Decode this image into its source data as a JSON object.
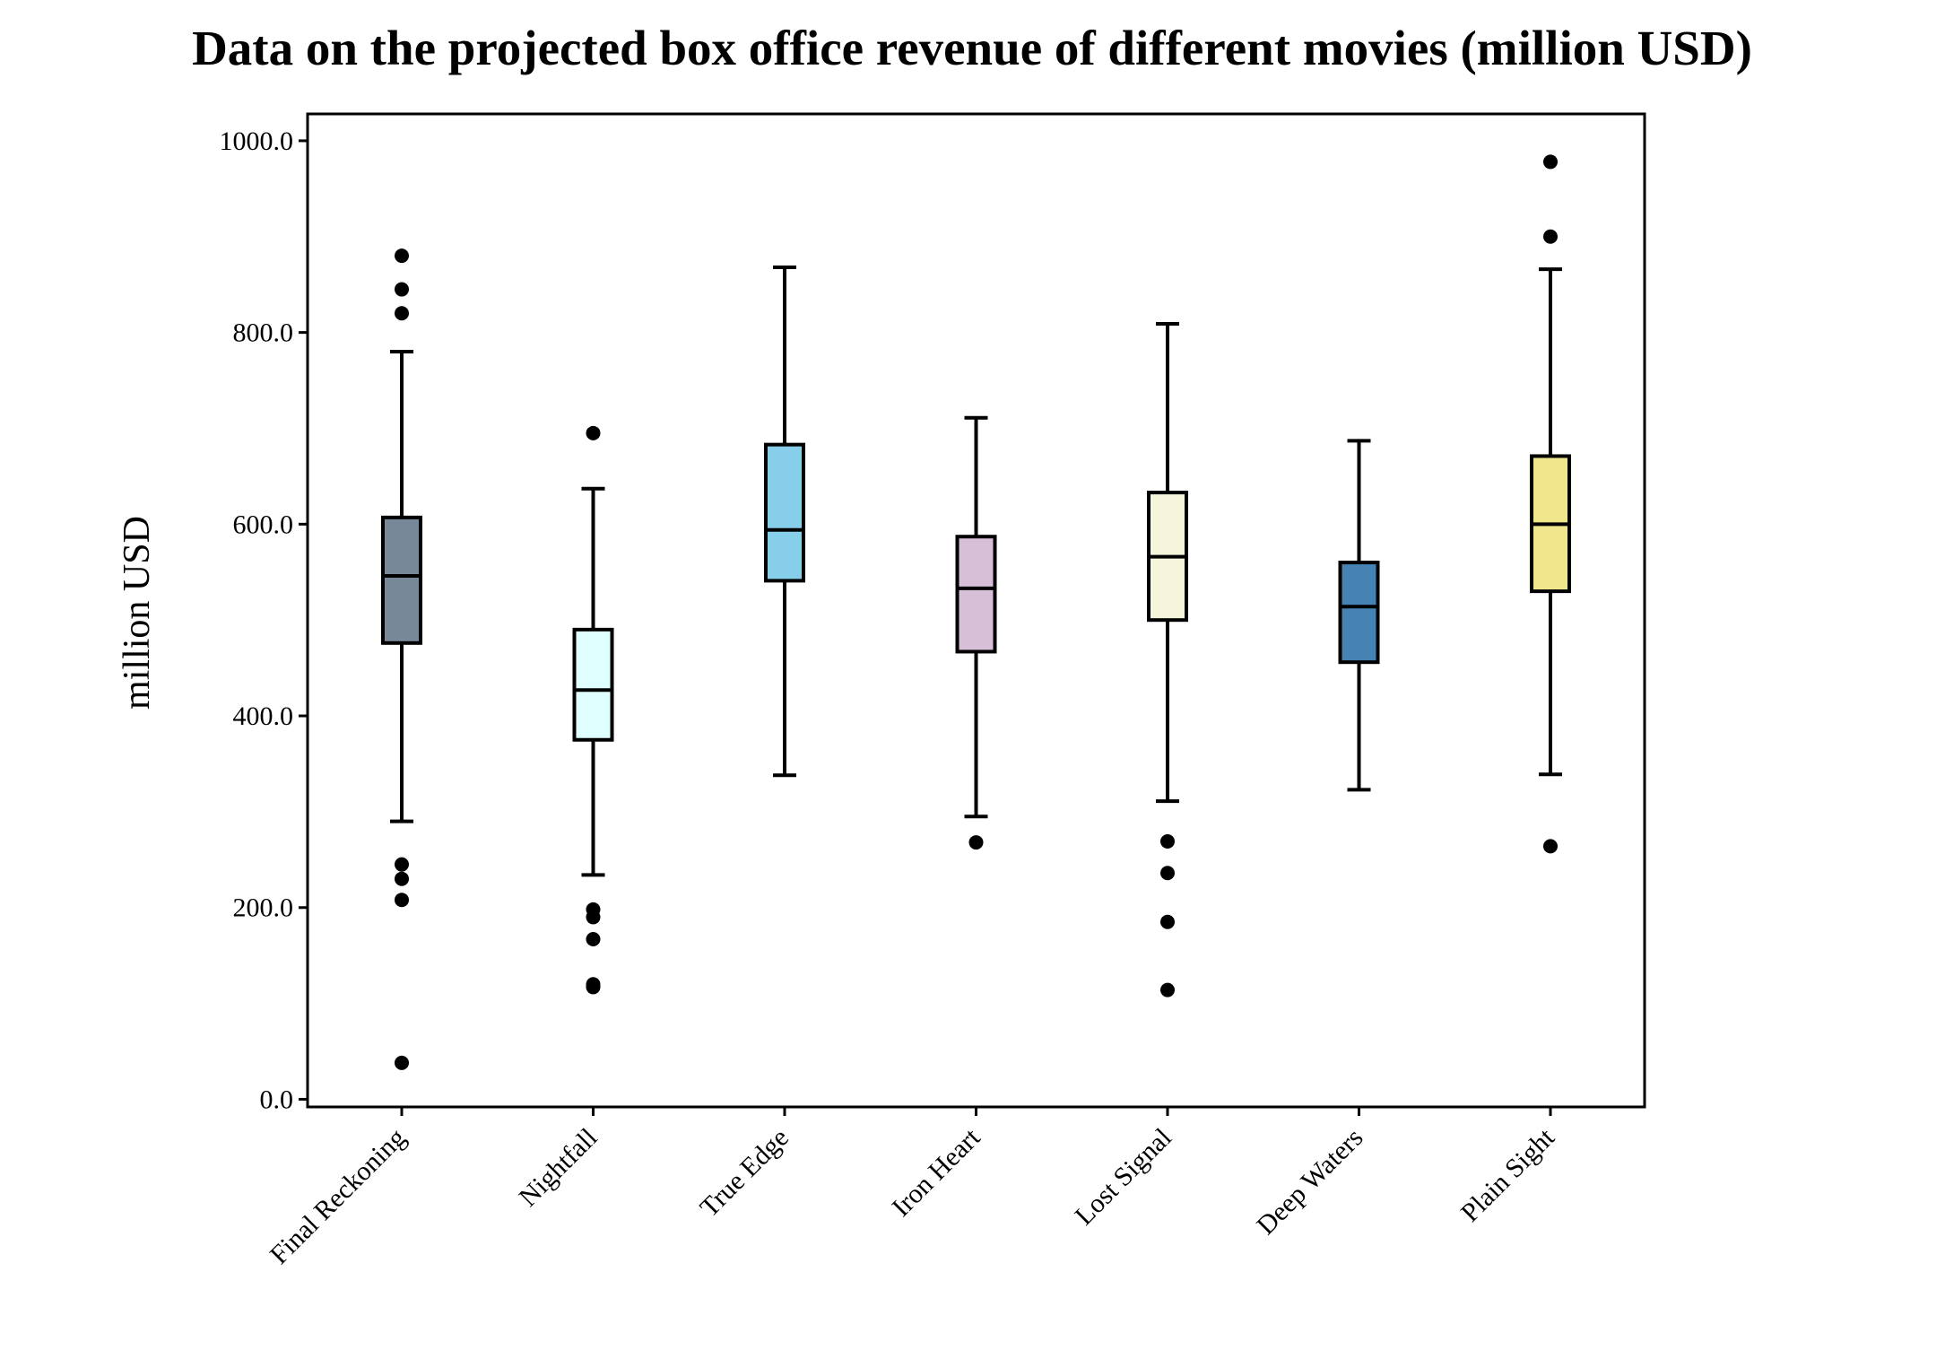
{
  "chart_data": {
    "type": "box",
    "title": "Data on the projected box office revenue of different movies (million USD)",
    "xlabel": "",
    "ylabel": "million USD",
    "ylim": [
      -8,
      1028
    ],
    "yticks": [
      "0.0",
      "200.0",
      "400.0",
      "600.0",
      "800.0",
      "1000.0"
    ],
    "grid": false,
    "categories": [
      "Final Reckoning",
      "Nightfall",
      "True Edge",
      "Iron Heart",
      "Lost Signal",
      "Deep Waters",
      "Plain Sight"
    ],
    "boxes": [
      {
        "category": "Final Reckoning",
        "color": "#778899",
        "whisker_low": 290,
        "q1": 476,
        "median": 546,
        "q3": 607,
        "whisker_high": 780,
        "outliers": [
          880,
          845,
          820,
          245,
          230,
          208,
          38
        ]
      },
      {
        "category": "Nightfall",
        "color": "#E0FFFF",
        "whisker_low": 234,
        "q1": 375,
        "median": 427,
        "q3": 490,
        "whisker_high": 637,
        "outliers": [
          695,
          198,
          190,
          167,
          120,
          117
        ]
      },
      {
        "category": "True Edge",
        "color": "#87CEEB",
        "whisker_low": 338,
        "q1": 541,
        "median": 594,
        "q3": 683,
        "whisker_high": 868,
        "outliers": []
      },
      {
        "category": "Iron Heart",
        "color": "#D8BFD8",
        "whisker_low": 295,
        "q1": 467,
        "median": 533,
        "q3": 587,
        "whisker_high": 711,
        "outliers": [
          268
        ]
      },
      {
        "category": "Lost Signal",
        "color": "#F5F5DC",
        "whisker_low": 311,
        "q1": 500,
        "median": 566,
        "q3": 633,
        "whisker_high": 809,
        "outliers": [
          269,
          236,
          185,
          114
        ]
      },
      {
        "category": "Deep Waters",
        "color": "#4682B4",
        "whisker_low": 323,
        "q1": 456,
        "median": 514,
        "q3": 560,
        "whisker_high": 687,
        "outliers": []
      },
      {
        "category": "Plain Sight",
        "color": "#F0E68C",
        "whisker_low": 339,
        "q1": 530,
        "median": 600,
        "q3": 671,
        "whisker_high": 866,
        "outliers": [
          978,
          900,
          264
        ]
      }
    ]
  }
}
